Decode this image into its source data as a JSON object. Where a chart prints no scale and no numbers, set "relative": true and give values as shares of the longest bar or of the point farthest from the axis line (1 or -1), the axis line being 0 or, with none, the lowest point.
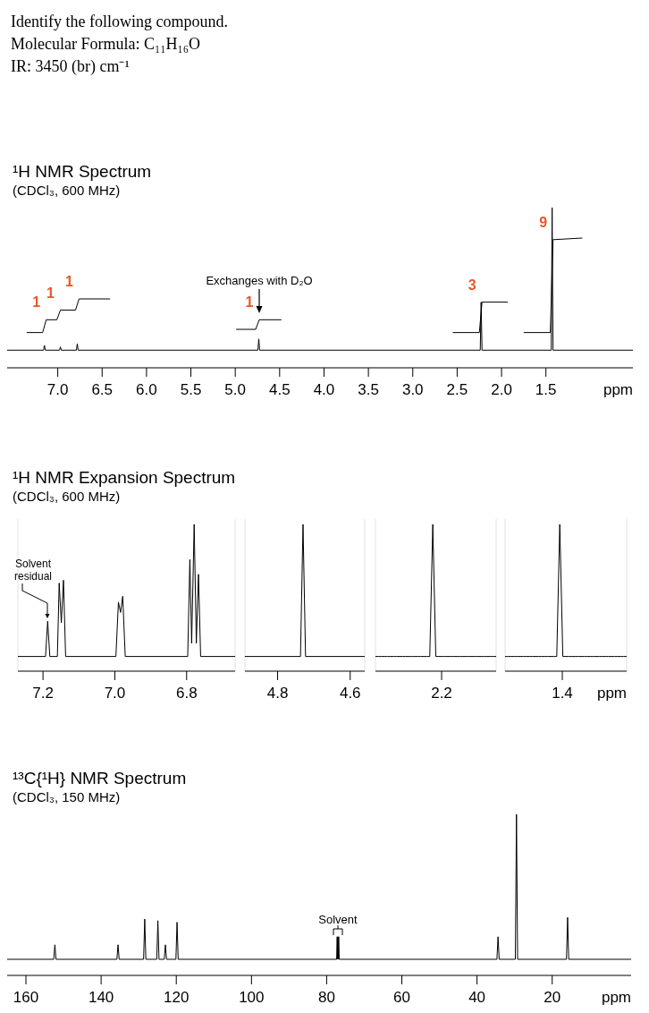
{
  "chart_data": [
    {
      "type": "other",
      "title": "Identify the following compound.",
      "annotations": [
        "Molecular Formula: C₁₁H₁₆O",
        "IR: 3450 (br) cm⁻¹"
      ]
    },
    {
      "type": "line",
      "title": "¹H NMR Spectrum",
      "subtitle": "(CDCl₃, 600 MHz)",
      "xlabel": "ppm",
      "relative": true,
      "xlim": [
        7.57,
        0.52
      ],
      "xticks": [
        {
          "value": 7,
          "label": "7.0"
        },
        6.5,
        {
          "value": 6,
          "label": "6.0"
        },
        5.5,
        {
          "value": 5,
          "label": "5.0"
        },
        4.5,
        {
          "value": 4,
          "label": "4.0"
        },
        3.5,
        {
          "value": 3,
          "label": "3.0"
        },
        2.5,
        {
          "value": 2,
          "label": "2.0"
        },
        1.5
      ],
      "series": [
        {
          "color": "#000000",
          "x": [
            7.57,
            7.16,
            7.15,
            7.14,
            6.98,
            6.97,
            6.96,
            6.79,
            6.78,
            6.77,
            4.745,
            4.735,
            4.725,
            2.24,
            2.23,
            2.22,
            1.44,
            1.43,
            1.42,
            0.52
          ],
          "values": [
            0.11,
            0.11,
            0.14,
            0.11,
            0.11,
            0.13,
            0.11,
            0.11,
            0.15,
            0.11,
            0.11,
            0.18,
            0.11,
            0.11,
            0.41,
            0.11,
            0.11,
            1,
            0.11,
            0.11
          ]
        },
        {
          "color": "#000000",
          "x": [
            7.35,
            7.17,
            7.13,
            7.01,
            6.97,
            6.8,
            6.76,
            6.41,
            5.7,
            4.99,
            4.77,
            4.73,
            4.48,
            3.5,
            2.55,
            2.25,
            2.22,
            1.93,
            1.85,
            1.75,
            1.45,
            1.42,
            1.09
          ],
          "values": [
            0.22,
            0.22,
            0.3,
            0.3,
            0.36,
            0.36,
            0.43,
            0.43,
            null,
            0.24,
            0.24,
            0.3,
            0.3,
            null,
            0.22,
            0.22,
            0.41,
            0.41,
            null,
            0.22,
            0.22,
            0.8,
            0.81
          ]
        }
      ],
      "annotations": [
        "Exchanges with D₂O",
        {
          "text": "1",
          "x": 7.13,
          "y": 0.3
        },
        {
          "text": "1",
          "x": 6.97,
          "y": 0.36
        },
        {
          "text": "1",
          "x": 6.76,
          "y": 0.43
        },
        {
          "text": "1",
          "x": 4.73,
          "y": 0.3
        },
        {
          "text": "3",
          "x": 2.22,
          "y": 0.41
        },
        {
          "text": "9",
          "x": 1.42,
          "y": 0.8
        }
      ]
    },
    {
      "type": "line",
      "title": "¹H NMR Expansion Spectrum",
      "subtitle": "(CDCl₃, 600 MHz)",
      "relative": true,
      "xlim": [
        7.27,
        6.665
      ],
      "xticks": [
        7.2,
        {
          "value": 7,
          "label": "7.0"
        },
        6.8
      ],
      "series": [
        {
          "color": "#000000",
          "x": [
            7.27,
            7.193,
            7.187,
            7.181,
            7.16,
            7.155,
            7.149,
            7.143,
            7.137,
            6.997,
            6.99,
            6.984,
            6.978,
            6.971,
            6.797,
            6.791,
            6.786,
            6.779,
            6.773,
            6.767,
            6.761,
            6.665
          ],
          "values": [
            0.1,
            0.1,
            0.34,
            0.1,
            0.1,
            0.6,
            0.33,
            0.62,
            0.1,
            0.1,
            0.47,
            0.4,
            0.51,
            0.1,
            0.1,
            0.76,
            0.19,
            1,
            0.19,
            0.66,
            0.1,
            0.1
          ]
        }
      ],
      "annotations": [
        "Solvent residual"
      ]
    },
    {
      "type": "line",
      "relative": true,
      "xlim": [
        4.89,
        4.56
      ],
      "xticks": [
        4.8,
        4.6
      ],
      "series": [
        {
          "color": "#000000",
          "x": [
            4.89,
            4.737,
            4.73,
            4.723,
            4.56
          ],
          "values": [
            0.1,
            0.1,
            1,
            0.1,
            0.1
          ]
        }
      ]
    },
    {
      "type": "line",
      "relative": true,
      "categories": [
        null,
        null,
        null,
        null,
        null,
        null,
        null,
        null,
        null,
        null,
        null,
        null,
        null,
        null,
        null,
        null,
        null,
        null,
        null,
        null,
        null,
        null,
        null,
        null,
        null,
        null,
        null,
        null,
        null,
        null,
        null,
        null,
        null,
        null,
        null,
        null,
        null,
        null,
        null,
        null,
        null
      ],
      "series": [
        {
          "color": "#000000",
          "values": [
            0.1,
            0.1,
            0.1,
            0.1,
            0.1,
            0.1,
            0.1,
            0.1,
            0.1,
            0.1,
            0.1,
            0.1,
            0.1,
            0.1,
            0.1,
            0.1,
            0.1,
            0.1,
            0.1,
            1,
            0.1,
            0.1,
            0.1,
            0.1,
            0.1,
            0.1,
            0.1,
            0.1,
            0.1,
            0.1,
            0.1,
            0.1,
            0.1,
            0.1,
            0.1,
            0.1,
            0.1,
            0.1,
            0.1,
            0.1,
            0.1
          ]
        }
      ],
      "annotations": [
        "2.2"
      ]
    },
    {
      "type": "line",
      "relative": true,
      "xlabel": "ppm",
      "categories": [
        null,
        null,
        null,
        null,
        null,
        null,
        null,
        null,
        null,
        null,
        null,
        null,
        null,
        null,
        null,
        null,
        null,
        null,
        null,
        null,
        null,
        null,
        null,
        null,
        null,
        null,
        null,
        null,
        null,
        null,
        null,
        null,
        null,
        null,
        null,
        null,
        null,
        null,
        null,
        null,
        null
      ],
      "series": [
        {
          "color": "#000000",
          "values": [
            0.1,
            0.1,
            0.1,
            0.1,
            0.1,
            0.1,
            0.1,
            0.1,
            0.1,
            0.1,
            0.1,
            0.1,
            0.1,
            0.1,
            0.1,
            0.1,
            0.1,
            0.1,
            1,
            0.1,
            0.1,
            0.1,
            0.1,
            0.1,
            0.1,
            0.1,
            0.1,
            0.1,
            0.1,
            0.1,
            0.1,
            0.1,
            0.1,
            0.1,
            0.1,
            0.1,
            0.1,
            0.1,
            0.1,
            0.1,
            0.1
          ]
        }
      ],
      "annotations": [
        "1.4"
      ]
    },
    {
      "type": "line",
      "title": "¹³C{¹H} NMR Spectrum",
      "subtitle": "(CDCl₃, 150 MHz)",
      "xlabel": "ppm",
      "relative": true,
      "xlim": [
        165,
        -1
      ],
      "xticks": [
        160,
        140,
        120,
        100,
        80,
        60,
        40,
        20
      ],
      "series": [
        {
          "color": "#000000",
          "x": [
            165,
            152.6,
            152.3,
            152,
            135.8,
            135.5,
            135.2,
            128.7,
            128.4,
            128.1,
            125.2,
            124.9,
            124.6,
            123.2,
            122.9,
            122.6,
            120.1,
            119.8,
            119.5,
            77.35,
            77.2,
            77.1,
            77,
            76.9,
            76.8,
            76.65,
            34.7,
            34.4,
            34.1,
            29.8,
            29.5,
            29.2,
            16.2,
            15.9,
            15.6,
            -1
          ],
          "values": [
            0.1,
            0.1,
            0.19,
            0.1,
            0.1,
            0.19,
            0.1,
            0.1,
            0.35,
            0.1,
            0.1,
            0.34,
            0.1,
            0.1,
            0.19,
            0.1,
            0.1,
            0.33,
            0.1,
            0.1,
            0.24,
            0.1,
            0.24,
            0.1,
            0.24,
            0.1,
            0.1,
            0.24,
            0.1,
            0.1,
            1,
            0.1,
            0.1,
            0.36,
            0.1,
            0.1
          ]
        }
      ],
      "annotations": [
        "Solvent"
      ]
    }
  ]
}
